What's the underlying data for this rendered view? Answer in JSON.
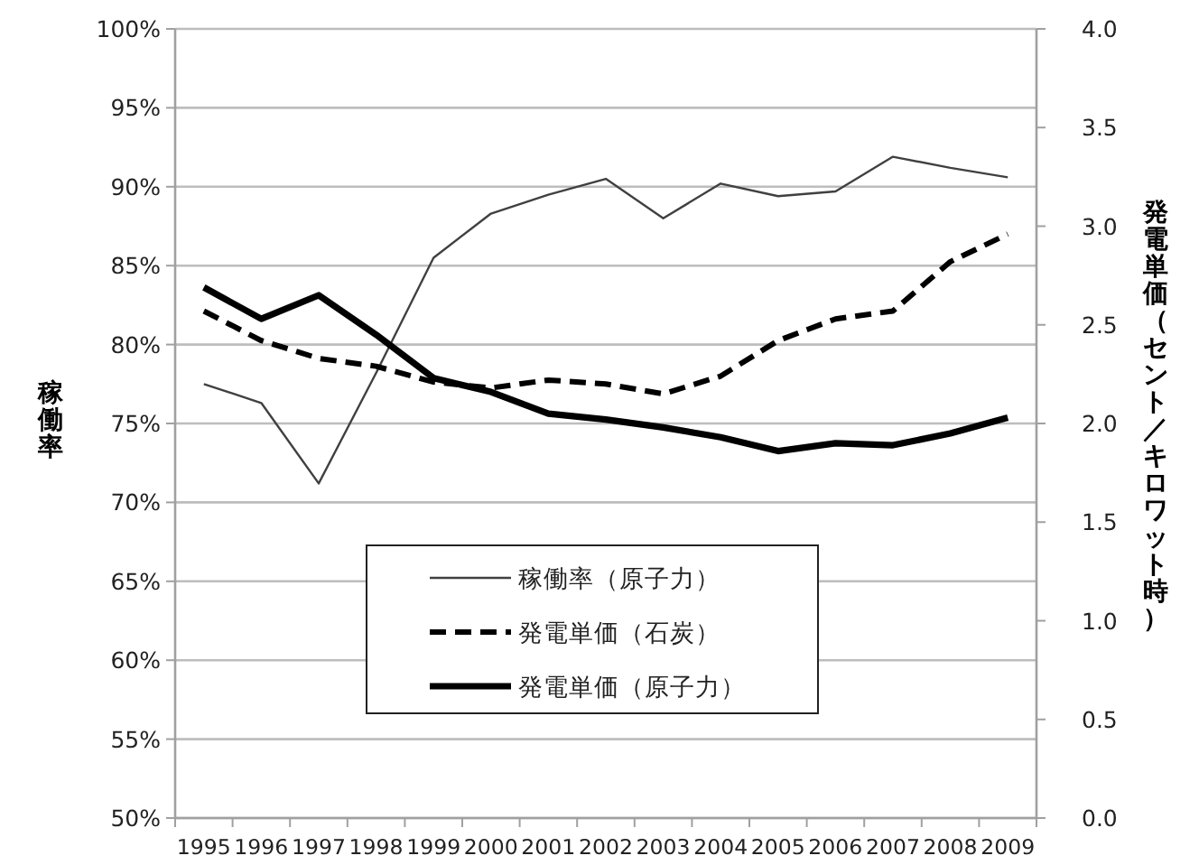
{
  "chart_data": {
    "type": "line",
    "ylabel": "稼働率",
    "y2label": "発電単価（セント／キロワット時）",
    "categories": [
      "1995",
      "1996",
      "1997",
      "1998",
      "1999",
      "2000",
      "2001",
      "2002",
      "2003",
      "2004",
      "2005",
      "2006",
      "2007",
      "2008",
      "2009"
    ],
    "series": [
      {
        "name": "稼働率（原子力）",
        "color": "#404040",
        "line_style": "solid",
        "values": [
          77.5,
          76.3,
          71.2,
          78.2,
          85.5,
          88.3,
          89.5,
          90.5,
          88.0,
          90.2,
          89.4,
          89.7,
          91.9,
          91.2,
          90.6
        ]
      },
      {
        "name": "発電単価（石炭）",
        "color": "#000000",
        "line_style": "dashed",
        "axis": "y2",
        "values": [
          2.57,
          2.42,
          2.33,
          2.29,
          2.21,
          2.18,
          2.22,
          2.2,
          2.15,
          2.24,
          2.42,
          2.53,
          2.57,
          2.82,
          2.96
        ]
      },
      {
        "name": "発電単価（原子力）",
        "color": "#000000",
        "line_style": "solid",
        "axis": "y2",
        "values": [
          2.69,
          2.53,
          2.65,
          2.45,
          2.23,
          2.16,
          2.05,
          2.02,
          1.98,
          1.93,
          1.86,
          1.9,
          1.89,
          1.95,
          2.03
        ]
      }
    ],
    "ylim": [
      50,
      100
    ],
    "yticks": [
      {
        "value": 50,
        "label": "50%"
      },
      {
        "value": 55,
        "label": "55%"
      },
      {
        "value": 60,
        "label": "60%"
      },
      {
        "value": 65,
        "label": "65%"
      },
      {
        "value": 70,
        "label": "70%"
      },
      {
        "value": 75,
        "label": "75%"
      },
      {
        "value": 80,
        "label": "80%"
      },
      {
        "value": 85,
        "label": "85%"
      },
      {
        "value": 90,
        "label": "90%"
      },
      {
        "value": 95,
        "label": "95%"
      },
      {
        "value": 100,
        "label": "100%"
      }
    ],
    "y2lim": [
      0,
      4
    ],
    "y2ticks": [
      {
        "value": 0,
        "label": "0.0"
      },
      {
        "value": 0.5,
        "label": "0.5"
      },
      {
        "value": 1,
        "label": "1.0"
      },
      {
        "value": 1.5,
        "label": "1.5"
      },
      {
        "value": 2,
        "label": "2.0"
      },
      {
        "value": 2.5,
        "label": "2.5"
      },
      {
        "value": 3,
        "label": "3.0"
      },
      {
        "value": 3.5,
        "label": "3.5"
      },
      {
        "value": 4,
        "label": "4.0"
      }
    ],
    "grid": "y",
    "legend": "bottom",
    "marker": "none"
  }
}
